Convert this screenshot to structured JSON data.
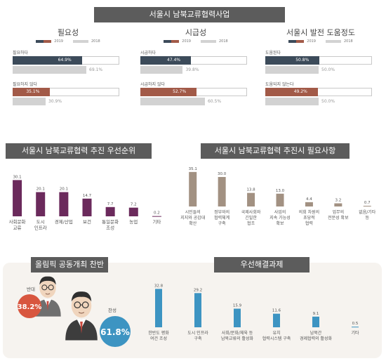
{
  "main_title": "서울시 남북교류협력사업",
  "legend": {
    "y2019": "2019",
    "y2018": "2018"
  },
  "colors": {
    "dark": "#3c4b5a",
    "rust": "#a25a48",
    "gray": "#d2d2d2",
    "purple": "#6b2a5c",
    "taupe": "#a29182",
    "blue": "#3d94c2",
    "banner": "#5c5c5c",
    "red_circle": "#d8563f",
    "blue_circle": "#3d94c2"
  },
  "chart_data": [
    {
      "type": "bar",
      "title": "필요성",
      "orientation": "horizontal",
      "categories": [
        "필요하다",
        "필요하지 않다"
      ],
      "series": [
        {
          "name": "2019",
          "values": [
            64.9,
            35.1
          ]
        },
        {
          "name": "2018",
          "values": [
            69.1,
            30.9
          ]
        }
      ],
      "labels_2019": [
        "64.9%",
        "35.1%"
      ],
      "labels_2018": [
        "69.1%",
        "30.9%"
      ]
    },
    {
      "type": "bar",
      "title": "시급성",
      "orientation": "horizontal",
      "categories": [
        "시급하다",
        "시급하지 않다"
      ],
      "series": [
        {
          "name": "2019",
          "values": [
            47.4,
            52.7
          ]
        },
        {
          "name": "2018",
          "values": [
            39.8,
            60.5
          ]
        }
      ],
      "labels_2019": [
        "47.4%",
        "52.7%"
      ],
      "labels_2018": [
        "39.8%",
        "60.5%"
      ]
    },
    {
      "type": "bar",
      "title": "서울시 발전 도움정도",
      "orientation": "horizontal",
      "categories": [
        "도움된다",
        "도움되지 않는다"
      ],
      "series": [
        {
          "name": "2019",
          "values": [
            50.8,
            49.2
          ]
        },
        {
          "name": "2018",
          "values": [
            50.0,
            50.0
          ]
        }
      ],
      "labels_2019": [
        "50.8%",
        "49.2%"
      ],
      "labels_2018": [
        "50.0%",
        "50.0%"
      ]
    },
    {
      "type": "bar",
      "title": "서울시 남북교류협력 추진 우선순위",
      "categories": [
        "사회문화\n교류",
        "도시\n인프라",
        "경제/산업",
        "보건",
        "통일문화\n조성",
        "농업",
        "기타"
      ],
      "values": [
        30.1,
        20.1,
        20.1,
        14.7,
        7.7,
        7.2,
        0.2
      ],
      "value_labels": [
        "30.1",
        "20.1",
        "20.1",
        "14.7",
        "7.7",
        "7.2",
        "0.2"
      ],
      "ylim": [
        0,
        35
      ]
    },
    {
      "type": "bar",
      "title": "서울시 남북교류협력 추진시 필요사항",
      "categories": [
        "시민들의\n지지와 공감대\n확산",
        "정부와의\n협력체계\n구축",
        "국제사회와\n긴밀한\n협조",
        "사업의\n지속 가능성\n확보",
        "의회 차원의\n초당적\n협력",
        "업무의\n전문성 확보",
        "없음/기타\n등"
      ],
      "values": [
        35.1,
        30.0,
        13.8,
        13.0,
        4.4,
        3.2,
        0.7
      ],
      "value_labels": [
        "35.1",
        "30.0",
        "13.8",
        "13.0",
        "4.4",
        "3.2",
        "0.7"
      ],
      "ylim": [
        0,
        40
      ]
    },
    {
      "type": "pie",
      "title": "올림픽 공동개최 찬반",
      "categories": [
        "반대",
        "찬성"
      ],
      "values": [
        38.2,
        61.8
      ],
      "value_labels": [
        "38.2%",
        "61.8%"
      ]
    },
    {
      "type": "bar",
      "title": "우선해결과제",
      "categories": [
        "한반도 평화\n여건 조성",
        "도시 인프라\n구축",
        "사회/문화/체육 등\n남북교류의 활성화",
        "유치\n협력시스템 구축",
        "남북간\n경제협력의 활성화",
        "기타"
      ],
      "values": [
        32.8,
        29.2,
        15.9,
        11.6,
        9.1,
        0.5
      ],
      "value_labels": [
        "32.8",
        "29.2",
        "15.9",
        "11.6",
        "9.1",
        "0.5"
      ],
      "ylim": [
        0,
        36
      ]
    }
  ]
}
